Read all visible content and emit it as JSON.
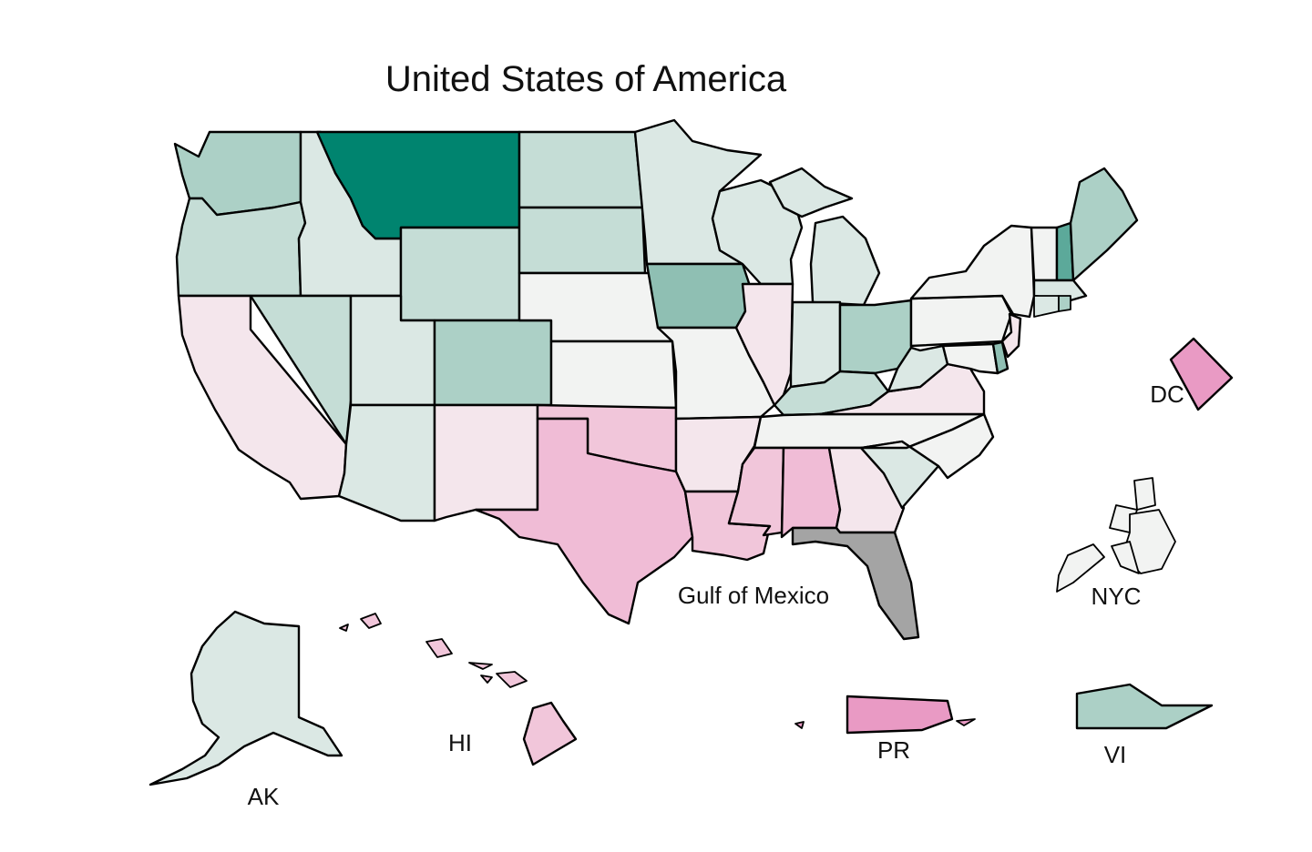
{
  "title": "United States of America",
  "labels": {
    "gulf": "Gulf of Mexico",
    "dc": "DC",
    "nyc": "NYC",
    "ak": "AK",
    "hi": "HI",
    "pr": "PR",
    "vi": "VI"
  },
  "colors": {
    "teal_darkest": "#00846f",
    "teal_dark": "#5ca99a",
    "teal_mid": "#8fbfb3",
    "teal_light": "#acd0c6",
    "teal_lighter": "#c5ddd6",
    "teal_faint": "#dbe8e4",
    "neutral": "#f2f3f2",
    "pink_faint": "#f4e6ec",
    "pink_light": "#f1c6da",
    "pink_mid": "#f0bcd6",
    "pink_strong": "#e99ac4",
    "no_data": "#a4a4a4"
  },
  "chart_data": {
    "type": "choropleth",
    "title": "United States of America",
    "regions": [
      {
        "name": "WA",
        "category": "teal_light"
      },
      {
        "name": "OR",
        "category": "teal_lighter"
      },
      {
        "name": "CA",
        "category": "pink_faint"
      },
      {
        "name": "ID",
        "category": "teal_faint"
      },
      {
        "name": "NV",
        "category": "teal_lighter"
      },
      {
        "name": "MT",
        "category": "teal_darkest"
      },
      {
        "name": "WY",
        "category": "teal_lighter"
      },
      {
        "name": "UT",
        "category": "teal_faint"
      },
      {
        "name": "AZ",
        "category": "teal_faint"
      },
      {
        "name": "CO",
        "category": "teal_light"
      },
      {
        "name": "NM",
        "category": "pink_faint"
      },
      {
        "name": "ND",
        "category": "teal_lighter"
      },
      {
        "name": "SD",
        "category": "teal_lighter"
      },
      {
        "name": "NE",
        "category": "neutral"
      },
      {
        "name": "KS",
        "category": "neutral"
      },
      {
        "name": "OK",
        "category": "pink_light"
      },
      {
        "name": "TX",
        "category": "pink_mid"
      },
      {
        "name": "MN",
        "category": "teal_faint"
      },
      {
        "name": "IA",
        "category": "teal_mid"
      },
      {
        "name": "MO",
        "category": "neutral"
      },
      {
        "name": "AR",
        "category": "pink_faint"
      },
      {
        "name": "LA",
        "category": "pink_light"
      },
      {
        "name": "WI",
        "category": "teal_faint"
      },
      {
        "name": "IL",
        "category": "pink_faint"
      },
      {
        "name": "MI",
        "category": "teal_faint"
      },
      {
        "name": "IN",
        "category": "teal_faint"
      },
      {
        "name": "OH",
        "category": "teal_light"
      },
      {
        "name": "KY",
        "category": "teal_lighter"
      },
      {
        "name": "TN",
        "category": "neutral"
      },
      {
        "name": "MS",
        "category": "pink_light"
      },
      {
        "name": "AL",
        "category": "pink_mid"
      },
      {
        "name": "GA",
        "category": "pink_faint"
      },
      {
        "name": "FL",
        "category": "no_data"
      },
      {
        "name": "SC",
        "category": "teal_faint"
      },
      {
        "name": "NC",
        "category": "neutral"
      },
      {
        "name": "VA",
        "category": "pink_faint"
      },
      {
        "name": "WV",
        "category": "teal_faint"
      },
      {
        "name": "PA",
        "category": "neutral"
      },
      {
        "name": "NY",
        "category": "neutral"
      },
      {
        "name": "VT",
        "category": "neutral"
      },
      {
        "name": "NH",
        "category": "teal_dark"
      },
      {
        "name": "ME",
        "category": "teal_light"
      },
      {
        "name": "MA",
        "category": "teal_faint"
      },
      {
        "name": "CT",
        "category": "teal_faint"
      },
      {
        "name": "RI",
        "category": "teal_light"
      },
      {
        "name": "NJ",
        "category": "pink_faint"
      },
      {
        "name": "DE",
        "category": "teal_mid"
      },
      {
        "name": "MD",
        "category": "neutral"
      },
      {
        "name": "DC",
        "category": "pink_strong"
      },
      {
        "name": "NYC",
        "category": "neutral"
      },
      {
        "name": "AK",
        "category": "teal_faint"
      },
      {
        "name": "HI",
        "category": "pink_light"
      },
      {
        "name": "PR",
        "category": "pink_strong"
      },
      {
        "name": "VI",
        "category": "teal_light"
      }
    ]
  }
}
